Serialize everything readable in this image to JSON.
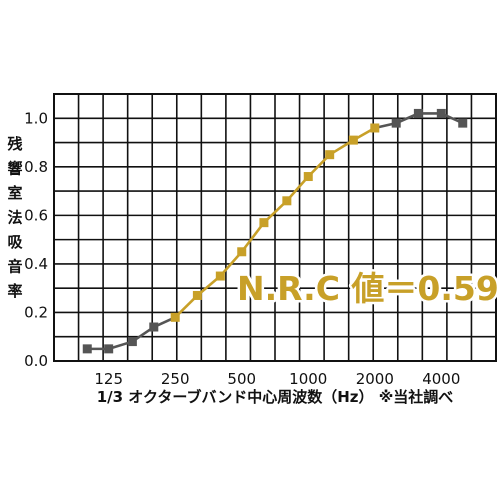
{
  "chart_data": {
    "type": "line",
    "title": "",
    "xlabel": "1/3 オクターブバンド中心周波数（Hz） ※当社調べ",
    "ylabel": "残響室法吸音率",
    "x_scale": "log2",
    "x": [
      100,
      125,
      160,
      200,
      250,
      315,
      400,
      500,
      630,
      800,
      1000,
      1250,
      1600,
      2000,
      2500,
      3150,
      4000,
      5000
    ],
    "x_tick_labels": [
      "125",
      "250",
      "500",
      "1000",
      "2000",
      "4000"
    ],
    "x_tick_values": [
      125,
      250,
      500,
      1000,
      2000,
      4000
    ],
    "ylim": [
      0,
      1.1
    ],
    "y_ticks": [
      "0.0",
      "0.2",
      "0.4",
      "0.6",
      "0.8",
      "1.0"
    ],
    "y_tick_values": [
      0,
      0.2,
      0.4,
      0.6,
      0.8,
      1.0
    ],
    "grid": true,
    "series": [
      {
        "values": [
          0.05,
          0.05,
          0.08,
          0.14,
          0.18,
          0.27,
          0.35,
          0.45,
          0.57,
          0.66,
          0.76,
          0.85,
          0.91,
          0.96,
          0.98,
          1.02,
          1.02,
          0.98
        ],
        "color_outer": "#555555",
        "color_mid": "#c8a028",
        "highlight_range": [
          "250",
          "2000"
        ]
      }
    ],
    "annotation": {
      "text": "N.R.C 値＝0.59",
      "color": "#c8a028"
    },
    "colors": {
      "grid": "#111111",
      "axis_text": "#111111",
      "background": "#ffffff"
    }
  }
}
